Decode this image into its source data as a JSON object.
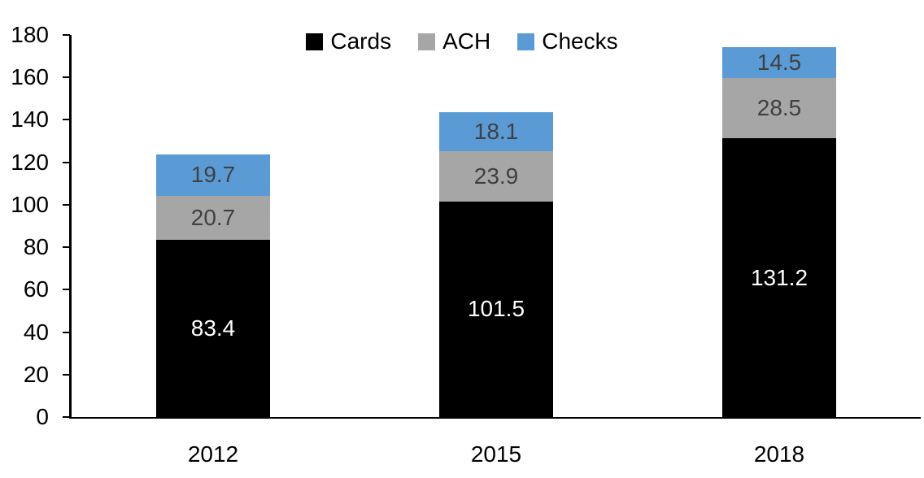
{
  "chart_data": {
    "type": "bar",
    "stacked": true,
    "title": "",
    "categories": [
      "2012",
      "2015",
      "2018"
    ],
    "series": [
      {
        "name": "Cards",
        "color": "#000000",
        "label_color": "#FFFFFF",
        "values": [
          83.4,
          101.5,
          131.2
        ]
      },
      {
        "name": "ACH",
        "color": "#A6A6A6",
        "label_color": "#404040",
        "values": [
          20.7,
          23.9,
          28.5
        ]
      },
      {
        "name": "Checks",
        "color": "#5B9BD5",
        "label_color": "#404040",
        "values": [
          19.7,
          18.1,
          14.5
        ]
      }
    ],
    "ylim": [
      0,
      180
    ],
    "ytick_step": 20,
    "ytick_labels": [
      "0",
      "20",
      "40",
      "60",
      "80",
      "100",
      "120",
      "140",
      "160",
      "180"
    ],
    "legend_position": "top",
    "legend_labels": [
      "Cards",
      "ACH",
      "Checks"
    ],
    "grid": false,
    "axis_color": "#000000",
    "tick_label_color": "#000000"
  }
}
